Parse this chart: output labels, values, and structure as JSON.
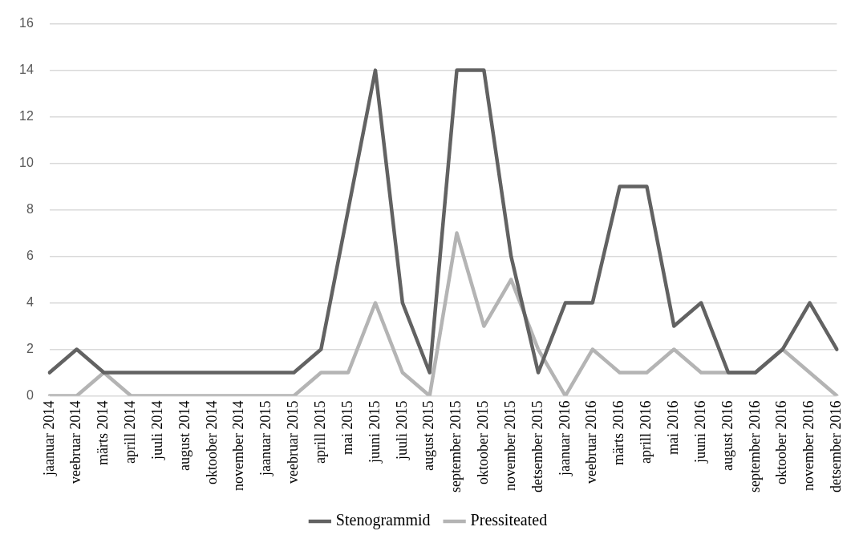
{
  "chart_data": {
    "type": "line",
    "categories": [
      "jaanuar 2014",
      "veebruar 2014",
      "märts 2014",
      "aprill 2014",
      "juuli 2014",
      "august 2014",
      "oktoober 2014",
      "november 2014",
      "jaanuar 2015",
      "veebruar 2015",
      "aprill 2015",
      "mai 2015",
      "juuni 2015",
      "juuli 2015",
      "august 2015",
      "september 2015",
      "oktoober 2015",
      "november 2015",
      "detsember 2015",
      "jaanuar 2016",
      "veebruar 2016",
      "märts 2016",
      "aprill 2016",
      "mai 2016",
      "juuni 2016",
      "august 2016",
      "september 2016",
      "oktoober 2016",
      "november 2016",
      "detsember 2016"
    ],
    "series": [
      {
        "name": "Stenogrammid",
        "color": "#626262",
        "values": [
          1,
          2,
          1,
          1,
          1,
          1,
          1,
          1,
          1,
          1,
          2,
          8,
          14,
          4,
          1,
          14,
          14,
          6,
          1,
          4,
          4,
          9,
          9,
          3,
          4,
          1,
          1,
          2,
          4,
          2
        ]
      },
      {
        "name": "Pressiteated",
        "color": "#b4b4b4",
        "values": [
          0,
          0,
          1,
          0,
          0,
          0,
          0,
          0,
          0,
          0,
          1,
          1,
          4,
          1,
          0,
          7,
          3,
          5,
          2,
          0,
          2,
          1,
          1,
          2,
          1,
          1,
          1,
          2,
          1,
          0
        ]
      }
    ],
    "ylim": [
      0,
      16
    ],
    "yticks": [
      0,
      2,
      4,
      6,
      8,
      10,
      12,
      14,
      16
    ],
    "grid": "y",
    "legend": "bottom",
    "marker": "none",
    "line_style": "solid"
  }
}
